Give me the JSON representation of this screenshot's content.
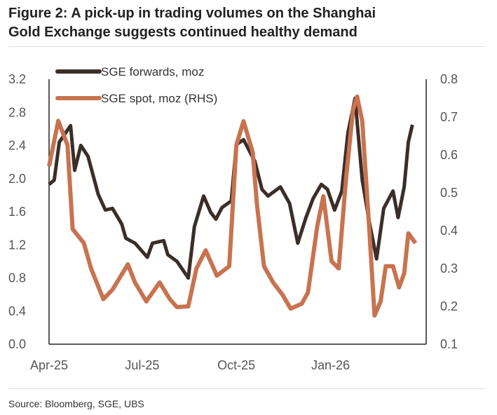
{
  "title_line1": "Figure 2: A pick-up in trading volumes on the Shanghai",
  "title_line2": "Gold Exchange suggests continued healthy demand",
  "source": "Source: Bloomberg, SGE, UBS",
  "chart_data": {
    "type": "line",
    "title": "Figure 2: A pick-up in trading volumes on the Shanghai Gold Exchange suggests continued healthy demand",
    "xlabel": "",
    "ylabel": "",
    "x_ticks": [
      {
        "label": "Apr-25",
        "date": "2025-04-01"
      },
      {
        "label": "Jul-25",
        "date": "2025-07-01"
      },
      {
        "label": "Oct-25",
        "date": "2025-10-01"
      },
      {
        "label": "Jan-26",
        "date": "2026-01-01"
      }
    ],
    "xlim": [
      "2025-04-01",
      "2026-03-31"
    ],
    "ylim_left": [
      0.0,
      3.2
    ],
    "yticks_left": [
      "0.0",
      "0.4",
      "0.8",
      "1.2",
      "1.6",
      "2.0",
      "2.4",
      "2.8",
      "3.2"
    ],
    "ylim_right": [
      0.1,
      0.8
    ],
    "yticks_right": [
      "0.1",
      "0.2",
      "0.3",
      "0.4",
      "0.5",
      "0.6",
      "0.7",
      "0.8"
    ],
    "grid": false,
    "legend": "top-left",
    "series": [
      {
        "name": "SGE forwards, moz",
        "axis": "left",
        "color": "#3b2e28",
        "x": [
          "2025-04-01",
          "2025-04-06",
          "2025-04-11",
          "2025-04-22",
          "2025-04-26",
          "2025-05-02",
          "2025-05-09",
          "2025-05-19",
          "2025-05-26",
          "2025-06-02",
          "2025-06-11",
          "2025-06-15",
          "2025-06-24",
          "2025-07-06",
          "2025-07-11",
          "2025-07-22",
          "2025-07-26",
          "2025-08-04",
          "2025-08-15",
          "2025-08-21",
          "2025-08-30",
          "2025-09-06",
          "2025-09-11",
          "2025-09-17",
          "2025-09-26",
          "2025-10-01",
          "2025-10-08",
          "2025-10-19",
          "2025-10-26",
          "2025-11-01",
          "2025-11-13",
          "2025-11-22",
          "2025-11-30",
          "2025-12-08",
          "2025-12-15",
          "2025-12-23",
          "2025-12-29",
          "2026-01-05",
          "2026-01-12",
          "2026-01-18",
          "2026-01-25",
          "2026-02-01",
          "2026-02-08",
          "2026-02-15",
          "2026-02-22",
          "2026-03-03",
          "2026-03-08",
          "2026-03-14",
          "2026-03-18",
          "2026-03-22"
        ],
        "y": [
          1.93,
          1.98,
          2.44,
          2.64,
          2.1,
          2.4,
          2.27,
          1.81,
          1.62,
          1.64,
          1.45,
          1.28,
          1.22,
          1.05,
          1.22,
          1.25,
          1.08,
          1.0,
          0.8,
          1.42,
          1.79,
          1.59,
          1.51,
          1.65,
          1.73,
          2.41,
          2.47,
          2.21,
          1.87,
          1.79,
          1.9,
          1.7,
          1.22,
          1.53,
          1.76,
          1.93,
          1.87,
          1.62,
          1.85,
          2.55,
          2.97,
          1.98,
          1.47,
          1.03,
          1.64,
          1.85,
          1.53,
          1.9,
          2.44,
          2.65
        ]
      },
      {
        "name": "SGE spot, moz (RHS)",
        "axis": "right",
        "color": "#c8734f",
        "x": [
          "2025-04-01",
          "2025-04-10",
          "2025-04-19",
          "2025-04-24",
          "2025-05-05",
          "2025-05-12",
          "2025-05-24",
          "2025-06-02",
          "2025-06-17",
          "2025-06-24",
          "2025-07-05",
          "2025-07-18",
          "2025-07-28",
          "2025-08-04",
          "2025-08-15",
          "2025-08-23",
          "2025-09-01",
          "2025-09-12",
          "2025-09-24",
          "2025-10-01",
          "2025-10-08",
          "2025-10-17",
          "2025-10-21",
          "2025-10-28",
          "2025-11-06",
          "2025-11-15",
          "2025-11-23",
          "2025-12-04",
          "2025-12-10",
          "2025-12-19",
          "2025-12-25",
          "2026-01-02",
          "2026-01-09",
          "2026-01-16",
          "2026-01-23",
          "2026-01-27",
          "2026-02-01",
          "2026-02-08",
          "2026-02-13",
          "2026-02-19",
          "2026-02-24",
          "2026-03-03",
          "2026-03-09",
          "2026-03-14",
          "2026-03-18",
          "2026-03-25"
        ],
        "y": [
          0.57,
          0.69,
          0.626,
          0.404,
          0.367,
          0.3,
          0.219,
          0.244,
          0.311,
          0.263,
          0.213,
          0.263,
          0.219,
          0.198,
          0.2,
          0.3,
          0.348,
          0.281,
          0.306,
          0.626,
          0.689,
          0.607,
          0.472,
          0.306,
          0.263,
          0.231,
          0.194,
          0.207,
          0.237,
          0.411,
          0.491,
          0.319,
          0.3,
          0.533,
          0.719,
          0.754,
          0.689,
          0.398,
          0.176,
          0.213,
          0.306,
          0.306,
          0.25,
          0.287,
          0.393,
          0.367
        ]
      }
    ]
  }
}
